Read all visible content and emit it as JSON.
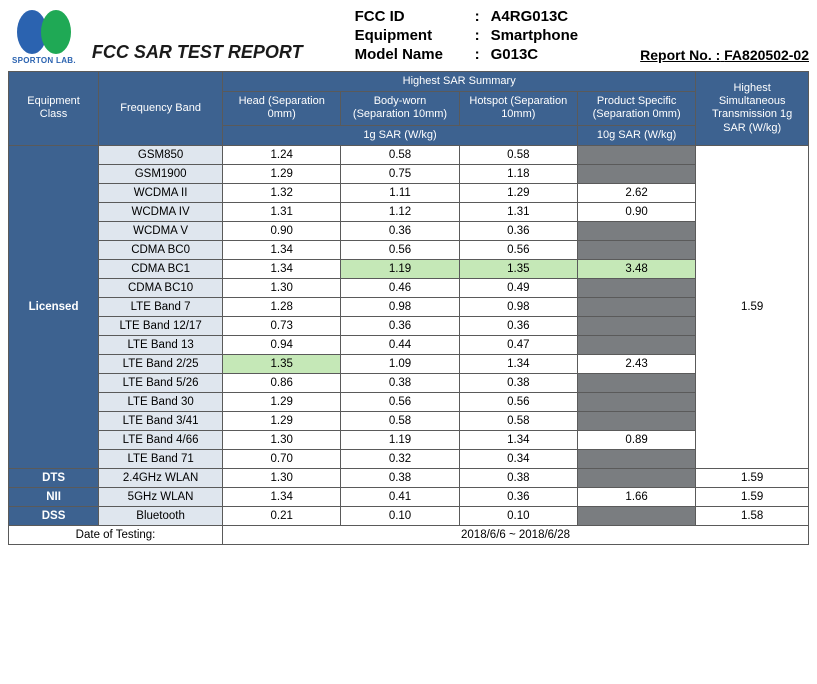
{
  "header": {
    "logo_label": "SPORTON LAB.",
    "title": "FCC SAR TEST REPORT",
    "fields": {
      "fcc_id_label": "FCC ID",
      "fcc_id_value": "A4RG013C",
      "equipment_label": "Equipment",
      "equipment_value": "Smartphone",
      "model_label": "Model Name",
      "model_value": "G013C"
    },
    "report_no_label": "Report No. :",
    "report_no_value": "FA820502-02"
  },
  "table": {
    "top_header": "Highest SAR Summary",
    "columns": {
      "equipment_class": "Equipment Class",
      "frequency_band": "Frequency Band",
      "head": "Head (Separation 0mm)",
      "body": "Body-worn (Separation 10mm)",
      "hotspot": "Hotspot (Separation 10mm)",
      "product_specific": "Product Specific (Separation 0mm)",
      "highest_sim": "Highest Simultaneous Transmission 1g SAR (W/kg)",
      "unit_1g": "1g SAR (W/kg)",
      "unit_10g": "10g SAR (W/kg)"
    },
    "groups": [
      {
        "class": "Licensed",
        "hst": "1.59",
        "rows": [
          {
            "band": "GSM850",
            "head": "1.24",
            "body": "0.58",
            "hot": "0.58",
            "ps": null
          },
          {
            "band": "GSM1900",
            "head": "1.29",
            "body": "0.75",
            "hot": "1.18",
            "ps": null
          },
          {
            "band": "WCDMA II",
            "head": "1.32",
            "body": "1.11",
            "hot": "1.29",
            "ps": "2.62"
          },
          {
            "band": "WCDMA IV",
            "head": "1.31",
            "body": "1.12",
            "hot": "1.31",
            "ps": "0.90"
          },
          {
            "band": "WCDMA V",
            "head": "0.90",
            "body": "0.36",
            "hot": "0.36",
            "ps": null
          },
          {
            "band": "CDMA BC0",
            "head": "1.34",
            "body": "0.56",
            "hot": "0.56",
            "ps": null
          },
          {
            "band": "CDMA BC1",
            "head": "1.34",
            "body": "1.19",
            "hot": "1.35",
            "ps": "3.48",
            "hl": [
              "body",
              "hot",
              "ps"
            ]
          },
          {
            "band": "CDMA BC10",
            "head": "1.30",
            "body": "0.46",
            "hot": "0.49",
            "ps": null
          },
          {
            "band": "LTE Band 7",
            "head": "1.28",
            "body": "0.98",
            "hot": "0.98",
            "ps": null
          },
          {
            "band": "LTE Band 12/17",
            "head": "0.73",
            "body": "0.36",
            "hot": "0.36",
            "ps": null
          },
          {
            "band": "LTE Band 13",
            "head": "0.94",
            "body": "0.44",
            "hot": "0.47",
            "ps": null
          },
          {
            "band": "LTE Band 2/25",
            "head": "1.35",
            "body": "1.09",
            "hot": "1.34",
            "ps": "2.43",
            "hl": [
              "head"
            ]
          },
          {
            "band": "LTE Band 5/26",
            "head": "0.86",
            "body": "0.38",
            "hot": "0.38",
            "ps": null
          },
          {
            "band": "LTE Band 30",
            "head": "1.29",
            "body": "0.56",
            "hot": "0.56",
            "ps": null
          },
          {
            "band": "LTE Band 3/41",
            "head": "1.29",
            "body": "0.58",
            "hot": "0.58",
            "ps": null
          },
          {
            "band": "LTE Band 4/66",
            "head": "1.30",
            "body": "1.19",
            "hot": "1.34",
            "ps": "0.89"
          },
          {
            "band": "LTE Band 71",
            "head": "0.70",
            "body": "0.32",
            "hot": "0.34",
            "ps": null
          }
        ]
      },
      {
        "class": "DTS",
        "hst": "1.59",
        "rows": [
          {
            "band": "2.4GHz WLAN",
            "head": "1.30",
            "body": "0.38",
            "hot": "0.38",
            "ps": null
          }
        ]
      },
      {
        "class": "NII",
        "hst": "1.59",
        "rows": [
          {
            "band": "5GHz WLAN",
            "head": "1.34",
            "body": "0.41",
            "hot": "0.36",
            "ps": "1.66"
          }
        ]
      },
      {
        "class": "DSS",
        "hst": "1.58",
        "rows": [
          {
            "band": "Bluetooth",
            "head": "0.21",
            "body": "0.10",
            "hot": "0.10",
            "ps": null
          }
        ]
      }
    ],
    "footer": {
      "date_label": "Date of Testing:",
      "date_value": "2018/6/6 ~ 2018/6/28"
    }
  },
  "colors": {
    "header_bg": "#3d6290",
    "band_bg": "#dfe6ee",
    "grey_bg": "#7a7d80",
    "green_bg": "#c5e8b7"
  }
}
